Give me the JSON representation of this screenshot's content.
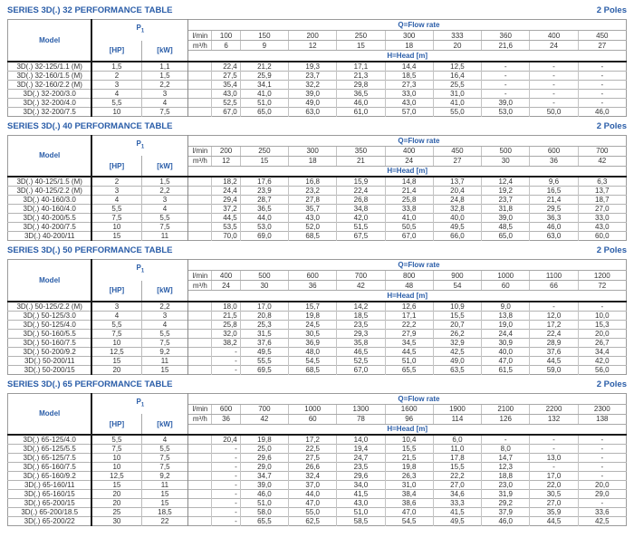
{
  "page": {
    "accent_color": "#2a5da8",
    "text_color": "#333333"
  },
  "labels": {
    "model": "Model",
    "p1_base": "P",
    "p1_sub": "1",
    "hp": "[HP]",
    "kw": "[kW]",
    "lmin": "l/min",
    "m3h": "m³/h",
    "flow_rate": "Q=Flow rate",
    "head": "H=Head [m]"
  },
  "tables": [
    {
      "title": "SERIES 3D(.) 32 PERFORMANCE TABLE",
      "poles": "2 Poles",
      "lmin_values": [
        "100",
        "150",
        "200",
        "250",
        "300",
        "333",
        "360",
        "400",
        "450"
      ],
      "m3h_values": [
        "6",
        "9",
        "12",
        "15",
        "18",
        "20",
        "21,6",
        "24",
        "27"
      ],
      "rows": [
        {
          "model": "3D(.) 32-125/1.1 (M)",
          "hp": "1,5",
          "kw": "1,1",
          "head": [
            "22,4",
            "21,2",
            "19,3",
            "17,1",
            "14,4",
            "12,5",
            "-",
            "-",
            "-"
          ]
        },
        {
          "model": "3D(.) 32-160/1.5 (M)",
          "hp": "2",
          "kw": "1,5",
          "head": [
            "27,5",
            "25,9",
            "23,7",
            "21,3",
            "18,5",
            "16,4",
            "-",
            "-",
            "-"
          ]
        },
        {
          "model": "3D(.) 32-160/2.2 (M)",
          "hp": "3",
          "kw": "2,2",
          "head": [
            "35,4",
            "34,1",
            "32,2",
            "29,8",
            "27,3",
            "25,5",
            "-",
            "-",
            "-"
          ]
        },
        {
          "model": "3D(.) 32-200/3.0",
          "hp": "4",
          "kw": "3",
          "head": [
            "43,0",
            "41,0",
            "39,0",
            "36,5",
            "33,0",
            "31,0",
            "-",
            "-",
            "-"
          ]
        },
        {
          "model": "3D(.) 32-200/4.0",
          "hp": "5,5",
          "kw": "4",
          "head": [
            "52,5",
            "51,0",
            "49,0",
            "46,0",
            "43,0",
            "41,0",
            "39,0",
            "-",
            "-"
          ]
        },
        {
          "model": "3D(.) 32-200/7.5",
          "hp": "10",
          "kw": "7,5",
          "head": [
            "67,0",
            "65,0",
            "63,0",
            "61,0",
            "57,0",
            "55,0",
            "53,0",
            "50,0",
            "46,0"
          ]
        }
      ]
    },
    {
      "title": "SERIES 3D(.) 40 PERFORMANCE TABLE",
      "poles": "2 Poles",
      "lmin_values": [
        "200",
        "250",
        "300",
        "350",
        "400",
        "450",
        "500",
        "600",
        "700"
      ],
      "m3h_values": [
        "12",
        "15",
        "18",
        "21",
        "24",
        "27",
        "30",
        "36",
        "42"
      ],
      "rows": [
        {
          "model": "3D(.) 40-125/1.5 (M)",
          "hp": "2",
          "kw": "1,5",
          "head": [
            "18,2",
            "17,6",
            "16,8",
            "15,9",
            "14,8",
            "13,7",
            "12,4",
            "9,6",
            "6,3"
          ]
        },
        {
          "model": "3D(.) 40-125/2.2 (M)",
          "hp": "3",
          "kw": "2,2",
          "head": [
            "24,4",
            "23,9",
            "23,2",
            "22,4",
            "21,4",
            "20,4",
            "19,2",
            "16,5",
            "13,7"
          ]
        },
        {
          "model": "3D(.) 40-160/3.0",
          "hp": "4",
          "kw": "3",
          "head": [
            "29,4",
            "28,7",
            "27,8",
            "26,8",
            "25,8",
            "24,8",
            "23,7",
            "21,4",
            "18,7"
          ]
        },
        {
          "model": "3D(.) 40-160/4.0",
          "hp": "5,5",
          "kw": "4",
          "head": [
            "37,2",
            "36,5",
            "35,7",
            "34,8",
            "33,8",
            "32,8",
            "31,8",
            "29,5",
            "27,0"
          ]
        },
        {
          "model": "3D(.) 40-200/5.5",
          "hp": "7,5",
          "kw": "5,5",
          "head": [
            "44,5",
            "44,0",
            "43,0",
            "42,0",
            "41,0",
            "40,0",
            "39,0",
            "36,3",
            "33,0"
          ]
        },
        {
          "model": "3D(.) 40-200/7.5",
          "hp": "10",
          "kw": "7,5",
          "head": [
            "53,5",
            "53,0",
            "52,0",
            "51,5",
            "50,5",
            "49,5",
            "48,5",
            "46,0",
            "43,0"
          ]
        },
        {
          "model": "3D(.) 40-200/11",
          "hp": "15",
          "kw": "11",
          "head": [
            "70,0",
            "69,0",
            "68,5",
            "67,5",
            "67,0",
            "66,0",
            "65,0",
            "63,0",
            "60,0"
          ]
        }
      ]
    },
    {
      "title": "SERIES 3D(.) 50 PERFORMANCE TABLE",
      "poles": "2 Poles",
      "lmin_values": [
        "400",
        "500",
        "600",
        "700",
        "800",
        "900",
        "1000",
        "1100",
        "1200"
      ],
      "m3h_values": [
        "24",
        "30",
        "36",
        "42",
        "48",
        "54",
        "60",
        "66",
        "72"
      ],
      "rows": [
        {
          "model": "3D(.) 50-125/2.2 (M)",
          "hp": "3",
          "kw": "2,2",
          "head": [
            "18,0",
            "17,0",
            "15,7",
            "14,2",
            "12,6",
            "10,9",
            "9,0",
            "-",
            "-"
          ]
        },
        {
          "model": "3D(.) 50-125/3.0",
          "hp": "4",
          "kw": "3",
          "head": [
            "21,5",
            "20,8",
            "19,8",
            "18,5",
            "17,1",
            "15,5",
            "13,8",
            "12,0",
            "10,0"
          ]
        },
        {
          "model": "3D(.) 50-125/4.0",
          "hp": "5,5",
          "kw": "4",
          "head": [
            "25,8",
            "25,3",
            "24,5",
            "23,5",
            "22,2",
            "20,7",
            "19,0",
            "17,2",
            "15,3"
          ]
        },
        {
          "model": "3D(.) 50-160/5.5",
          "hp": "7,5",
          "kw": "5,5",
          "head": [
            "32,0",
            "31,5",
            "30,5",
            "29,3",
            "27,9",
            "26,2",
            "24,4",
            "22,4",
            "20,0"
          ]
        },
        {
          "model": "3D(.) 50-160/7.5",
          "hp": "10",
          "kw": "7,5",
          "head": [
            "38,2",
            "37,6",
            "36,9",
            "35,8",
            "34,5",
            "32,9",
            "30,9",
            "28,9",
            "26,7"
          ]
        },
        {
          "model": "3D(.) 50-200/9.2",
          "hp": "12,5",
          "kw": "9,2",
          "head": [
            "-",
            "49,5",
            "48,0",
            "46,5",
            "44,5",
            "42,5",
            "40,0",
            "37,6",
            "34,4"
          ]
        },
        {
          "model": "3D(.) 50-200/11",
          "hp": "15",
          "kw": "11",
          "head": [
            "-",
            "55,5",
            "54,5",
            "52,5",
            "51,0",
            "49,0",
            "47,0",
            "44,5",
            "42,0"
          ]
        },
        {
          "model": "3D(.) 50-200/15",
          "hp": "20",
          "kw": "15",
          "head": [
            "-",
            "69,5",
            "68,5",
            "67,0",
            "65,5",
            "63,5",
            "61,5",
            "59,0",
            "56,0"
          ]
        }
      ]
    },
    {
      "title": "SERIES 3D(.) 65 PERFORMANCE TABLE",
      "poles": "2 Poles",
      "lmin_values": [
        "600",
        "700",
        "1000",
        "1300",
        "1600",
        "1900",
        "2100",
        "2200",
        "2300"
      ],
      "m3h_values": [
        "36",
        "42",
        "60",
        "78",
        "96",
        "114",
        "126",
        "132",
        "138"
      ],
      "rows": [
        {
          "model": "3D(.) 65-125/4.0",
          "hp": "5,5",
          "kw": "4",
          "head": [
            "20,4",
            "19,8",
            "17,2",
            "14,0",
            "10,4",
            "6,0",
            "-",
            "-",
            "-"
          ]
        },
        {
          "model": "3D(.) 65-125/5.5",
          "hp": "7,5",
          "kw": "5,5",
          "head": [
            "-",
            "25,0",
            "22,5",
            "19,4",
            "15,5",
            "11,0",
            "8,0",
            "-",
            "-"
          ]
        },
        {
          "model": "3D(.) 65-125/7.5",
          "hp": "10",
          "kw": "7,5",
          "head": [
            "-",
            "29,6",
            "27,5",
            "24,7",
            "21,5",
            "17,8",
            "14,7",
            "13,0",
            "-"
          ]
        },
        {
          "model": "3D(.) 65-160/7.5",
          "hp": "10",
          "kw": "7,5",
          "head": [
            "-",
            "29,0",
            "26,6",
            "23,5",
            "19,8",
            "15,5",
            "12,3",
            "-",
            "-"
          ]
        },
        {
          "model": "3D(.) 65-160/9.2",
          "hp": "12,5",
          "kw": "9,2",
          "head": [
            "-",
            "34,7",
            "32,4",
            "29,6",
            "26,3",
            "22,2",
            "18,8",
            "17,0",
            "-"
          ]
        },
        {
          "model": "3D(.) 65-160/11",
          "hp": "15",
          "kw": "11",
          "head": [
            "-",
            "39,0",
            "37,0",
            "34,0",
            "31,0",
            "27,0",
            "23,0",
            "22,0",
            "20,0"
          ]
        },
        {
          "model": "3D(.) 65-160/15",
          "hp": "20",
          "kw": "15",
          "head": [
            "-",
            "46,0",
            "44,0",
            "41,5",
            "38,4",
            "34,6",
            "31,9",
            "30,5",
            "29,0"
          ]
        },
        {
          "model": "3D(.) 65-200/15",
          "hp": "20",
          "kw": "15",
          "head": [
            "-",
            "51,0",
            "47,0",
            "43,0",
            "38,6",
            "33,3",
            "29,2",
            "27,0",
            "-"
          ]
        },
        {
          "model": "3D(.) 65-200/18.5",
          "hp": "25",
          "kw": "18,5",
          "head": [
            "-",
            "58,0",
            "55,0",
            "51,0",
            "47,0",
            "41,5",
            "37,9",
            "35,9",
            "33,6"
          ]
        },
        {
          "model": "3D(.) 65-200/22",
          "hp": "30",
          "kw": "22",
          "head": [
            "-",
            "65,5",
            "62,5",
            "58,5",
            "54,5",
            "49,5",
            "46,0",
            "44,5",
            "42,5"
          ]
        }
      ]
    }
  ]
}
